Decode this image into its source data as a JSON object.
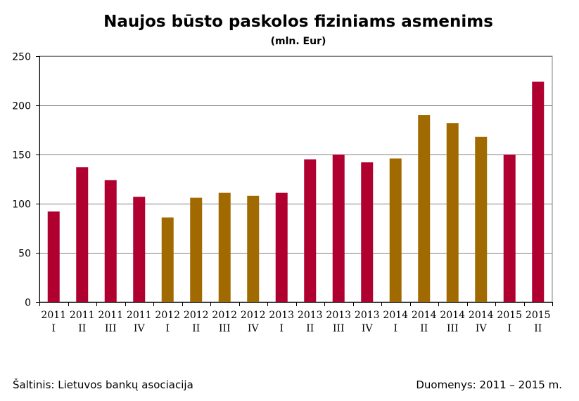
{
  "chart_data": {
    "type": "bar",
    "title": "Naujos būsto paskolos fiziniams asmenims",
    "subtitle": "(mln. Eur)",
    "xlabel": "",
    "ylabel": "",
    "ylim": [
      0,
      250
    ],
    "yticks": [
      0,
      50,
      100,
      150,
      200,
      250
    ],
    "grid": true,
    "legend": "none",
    "colors": {
      "crimson": "#B0002F",
      "olive": "#A06A00",
      "grid": "#808080"
    },
    "categories": [
      {
        "year": "2011",
        "quarter": "I"
      },
      {
        "year": "2011",
        "quarter": "II"
      },
      {
        "year": "2011",
        "quarter": "III"
      },
      {
        "year": "2011",
        "quarter": "IV"
      },
      {
        "year": "2012",
        "quarter": "I"
      },
      {
        "year": "2012",
        "quarter": "II"
      },
      {
        "year": "2012",
        "quarter": "III"
      },
      {
        "year": "2012",
        "quarter": "IV"
      },
      {
        "year": "2013",
        "quarter": "I"
      },
      {
        "year": "2013",
        "quarter": "II"
      },
      {
        "year": "2013",
        "quarter": "III"
      },
      {
        "year": "2013",
        "quarter": "IV"
      },
      {
        "year": "2014",
        "quarter": "I"
      },
      {
        "year": "2014",
        "quarter": "II"
      },
      {
        "year": "2014",
        "quarter": "III"
      },
      {
        "year": "2014",
        "quarter": "IV"
      },
      {
        "year": "2015",
        "quarter": "I"
      },
      {
        "year": "2015",
        "quarter": "II"
      }
    ],
    "values": [
      92,
      137,
      124,
      107,
      86,
      106,
      111,
      108,
      111,
      145,
      150,
      142,
      146,
      190,
      182,
      168,
      150,
      224
    ],
    "bar_colors": [
      "crimson",
      "crimson",
      "crimson",
      "crimson",
      "olive",
      "olive",
      "olive",
      "olive",
      "crimson",
      "crimson",
      "crimson",
      "crimson",
      "olive",
      "olive",
      "olive",
      "olive",
      "crimson",
      "crimson"
    ]
  },
  "footer": {
    "source": "Šaltinis: Lietuvos bankų asociacija",
    "period": "Duomenys: 2011 – 2015 m."
  }
}
